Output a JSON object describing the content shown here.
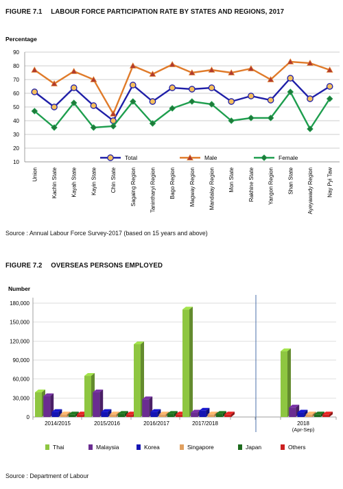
{
  "figure1": {
    "number": "FIGURE 7.1",
    "title": "LABOUR FORCE PARTICIPATION RATE BY STATES AND REGIONS, 2017",
    "source": "Source : Annual Labour Force Survey-2017 (based on 15 years and above)"
  },
  "figure2": {
    "number": "FIGURE 7.2",
    "title": "OVERSEAS PERSONS EMPLOYED",
    "source": "Source : Department of Labour"
  },
  "chart_data": [
    {
      "type": "line",
      "ylabel": "Percentage",
      "ylim": [
        10,
        90
      ],
      "yticks": [
        10,
        20,
        30,
        40,
        50,
        60,
        70,
        80,
        90
      ],
      "grid": true,
      "legend_position": "lower-center",
      "categories": [
        "Union",
        "Kachin State",
        "Kayah State",
        "Kayin State",
        "Chin State",
        "Sagaing Region",
        "Tanintharyi Region",
        "Bago Region",
        "Magway Region",
        "Mandalay Region",
        "Mon State",
        "Rakhine State",
        "Yangon Region",
        "Shan State",
        "Ayeyawady Region",
        "Nay Pyi Taw"
      ],
      "series": [
        {
          "name": "Total",
          "color": "#1f1fa8",
          "marker": "circle",
          "marker_fill": "#f6c05c",
          "values": [
            61,
            50,
            64,
            51,
            40,
            66,
            54,
            64,
            63,
            64,
            54,
            58,
            55,
            71,
            56,
            65
          ]
        },
        {
          "name": "Male",
          "color": "#e07b2a",
          "marker": "triangle",
          "marker_fill": "#b03a2e",
          "values": [
            77,
            67,
            76,
            70,
            45,
            80,
            74,
            81,
            75,
            77,
            75,
            78,
            70,
            83,
            82,
            77
          ]
        },
        {
          "name": "Female",
          "color": "#1e9e4e",
          "marker": "diamond",
          "marker_fill": "#1f7a3a",
          "values": [
            47,
            35,
            53,
            35,
            36,
            54,
            38,
            49,
            54,
            52,
            40,
            42,
            42,
            61,
            34,
            56
          ]
        }
      ]
    },
    {
      "type": "bar",
      "ylabel": "Number",
      "ylim": [
        0,
        180000
      ],
      "yticks": [
        "0",
        "30,000",
        "60,000",
        "90,000",
        "120,000",
        "150,000",
        "180,000"
      ],
      "ytick_values": [
        0,
        30000,
        60000,
        90000,
        120000,
        150000,
        180000
      ],
      "grid": true,
      "legend_position": "bottom",
      "categories": [
        "2014/2015",
        "2015/2016",
        "2016/2017",
        "2017/2018",
        "2018|(Apr-Sep)"
      ],
      "series": [
        {
          "name": "Thai",
          "color": "#8ec641",
          "values": [
            39000,
            65000,
            115000,
            170000,
            104000
          ]
        },
        {
          "name": "Malaysia",
          "color": "#6a2c91",
          "values": [
            33000,
            39000,
            28000,
            7000,
            15000
          ]
        },
        {
          "name": "Korea",
          "color": "#1414b4",
          "values": [
            8000,
            8000,
            8000,
            10000,
            7000
          ]
        },
        {
          "name": "Singapore",
          "color": "#e0a060",
          "values": [
            4000,
            4000,
            4000,
            4000,
            4000
          ]
        },
        {
          "name": "Japan",
          "color": "#1d6b1d",
          "values": [
            4000,
            5000,
            5000,
            5000,
            4000
          ]
        },
        {
          "name": "Others",
          "color": "#cc2020",
          "values": [
            4000,
            4000,
            4000,
            4000,
            4000
          ]
        }
      ]
    }
  ]
}
